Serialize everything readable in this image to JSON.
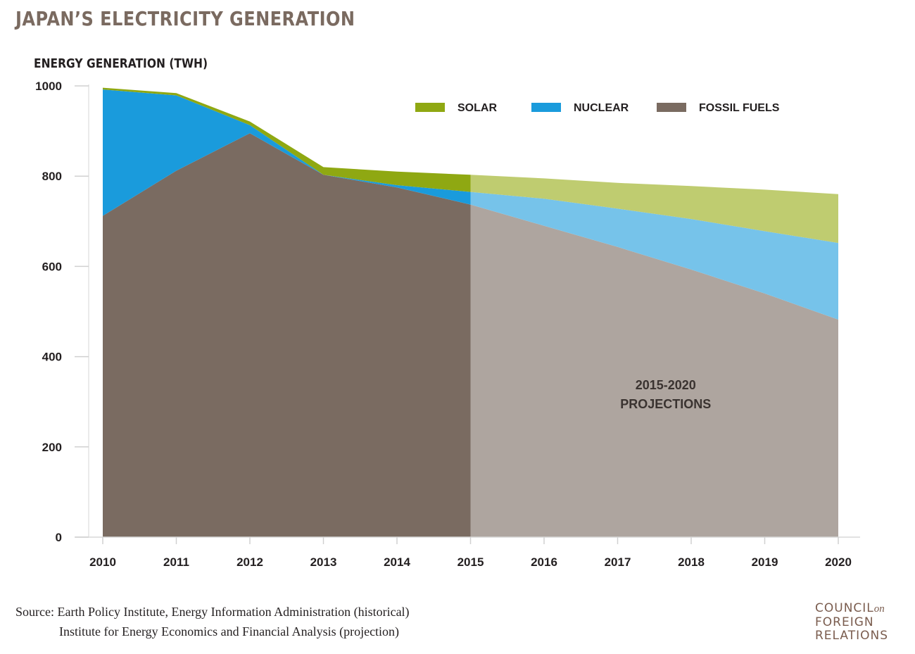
{
  "header": {
    "title": "JAPAN’S ELECTRICITY GENERATION",
    "y_axis_label": "ENERGY GENERATION (TWH)"
  },
  "chart_data": {
    "type": "area",
    "stacked": true,
    "title": "JAPAN’S ELECTRICITY GENERATION",
    "ylabel": "ENERGY GENERATION (TWH)",
    "xlabel": "",
    "x": [
      2010,
      2011,
      2012,
      2013,
      2014,
      2015,
      2016,
      2017,
      2018,
      2019,
      2020
    ],
    "x_tick_labels": [
      "2010",
      "2011",
      "2012",
      "2013",
      "2014",
      "2015",
      "2016",
      "2017",
      "2018",
      "2019",
      "2020"
    ],
    "ylim": [
      0,
      1000
    ],
    "y_ticks": [
      0,
      200,
      400,
      600,
      800,
      1000
    ],
    "y_tick_labels": [
      "0",
      "200",
      "400",
      "600",
      "800",
      "1000"
    ],
    "grid": false,
    "legend_position": "top-right",
    "projection_start": 2015,
    "annotation": {
      "line1": "2015-2020",
      "line2": "PROJECTIONS"
    },
    "series": [
      {
        "name": "FOSSIL FUELS",
        "color": "#7a6b61",
        "projection_color": "#aea59f",
        "values": [
          712,
          812,
          895,
          803,
          775,
          737,
          690,
          643,
          593,
          540,
          482
        ]
      },
      {
        "name": "NUCLEAR",
        "color": "#1a9bdc",
        "projection_color": "#76c3ea",
        "values": [
          280,
          167,
          18,
          0,
          5,
          28,
          60,
          85,
          112,
          138,
          170
        ]
      },
      {
        "name": "SOLAR",
        "color": "#8fa812",
        "projection_color": "#bfcc70",
        "values": [
          4,
          5,
          8,
          17,
          30,
          38,
          45,
          57,
          73,
          92,
          108
        ]
      }
    ]
  },
  "source": {
    "line1": "Source: Earth Policy Institute, Energy Information Administration (historical)",
    "line2": "Institute for Energy Economics and Financial Analysis (projection)"
  },
  "brand": {
    "line1": "COUNCIL",
    "line1_suffix": "on",
    "line2": "FOREIGN",
    "line3": "RELATIONS"
  }
}
